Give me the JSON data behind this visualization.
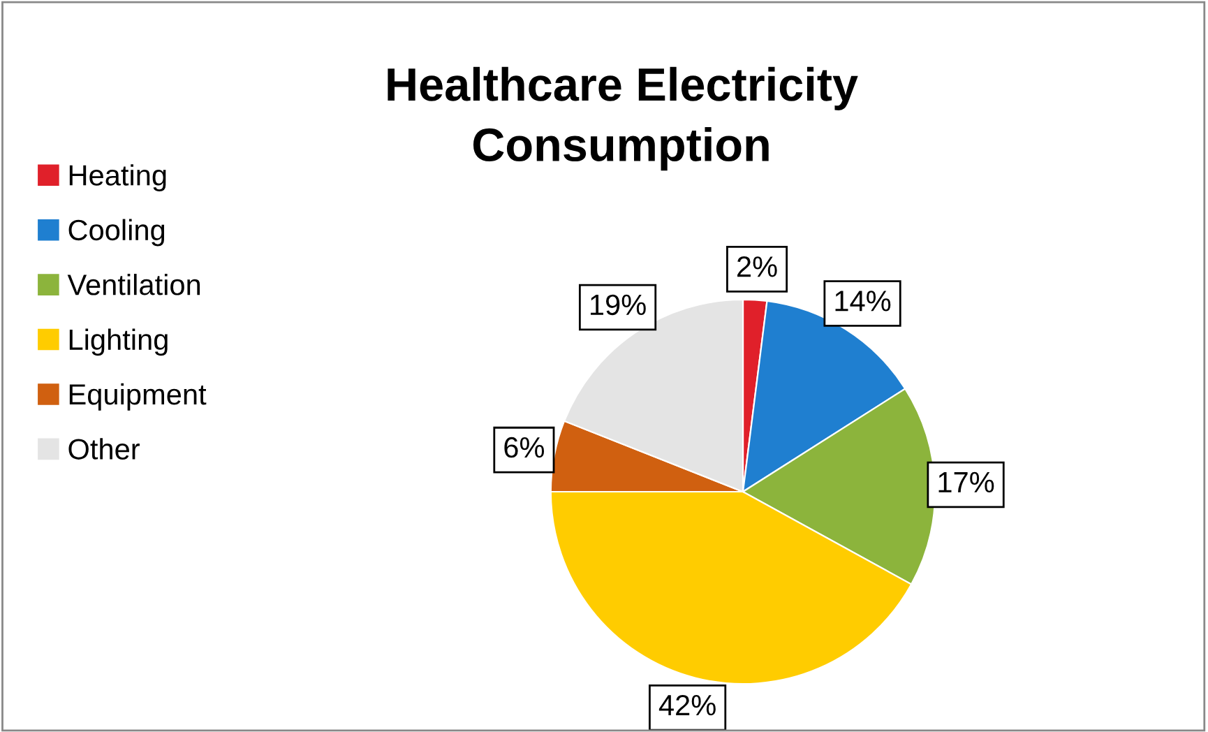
{
  "chart_data": {
    "type": "pie",
    "title": "Healthcare Electricity\nConsumption",
    "categories": [
      "Heating",
      "Cooling",
      "Ventilation",
      "Lighting",
      "Equipment",
      "Other"
    ],
    "values": [
      2,
      14,
      17,
      42,
      6,
      19
    ],
    "colors": [
      "#e0202a",
      "#1f7fd0",
      "#8cb43c",
      "#ffcc00",
      "#d06010",
      "#e4e4e4"
    ],
    "value_labels": [
      "2%",
      "14%",
      "17%",
      "42%",
      "6%",
      "19%"
    ],
    "legend": "left"
  }
}
